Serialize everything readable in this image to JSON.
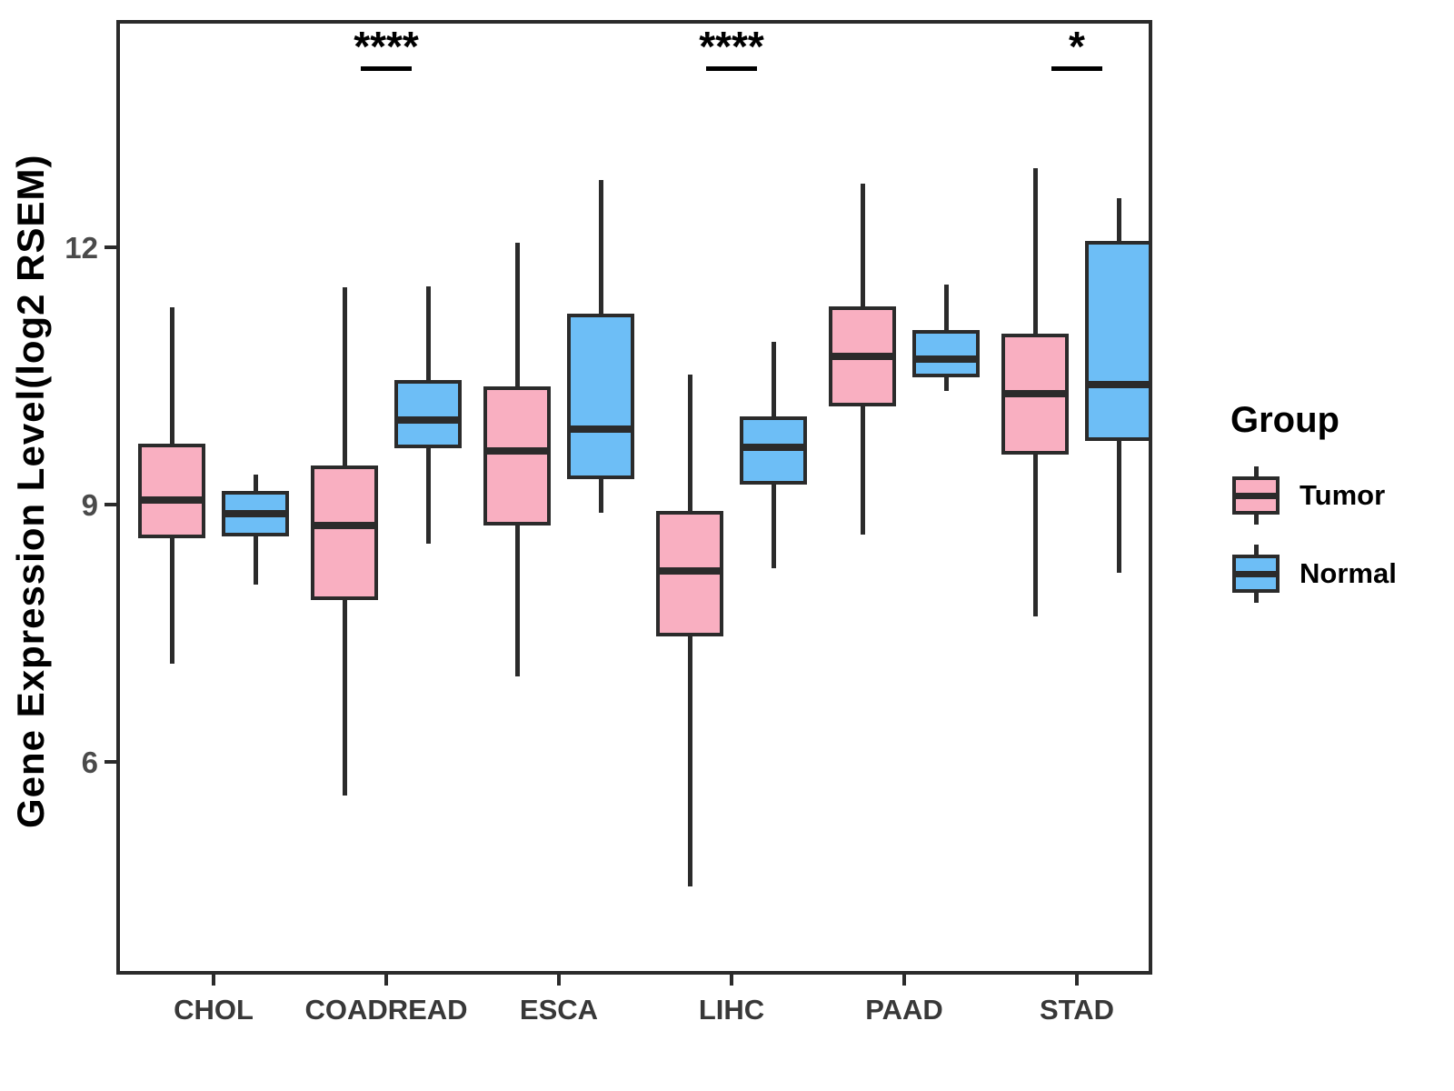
{
  "y_axis": {
    "label": "Gene Expression Level(log2 RSEM)",
    "tick_labels": [
      "12",
      "9",
      "6"
    ]
  },
  "x_axis": {
    "categories": [
      "CHOL",
      "COADREAD",
      "ESCA",
      "LIHC",
      "PAAD",
      "STAD"
    ]
  },
  "legend": {
    "title": "Group",
    "entries": [
      {
        "label": "Tumor",
        "color": "#f9afc1"
      },
      {
        "label": "Normal",
        "color": "#6dbef6"
      }
    ]
  },
  "colors": {
    "tumor_fill": "#f9afc1",
    "normal_fill": "#6dbef6",
    "stroke": "#2b2b2b"
  },
  "chart_data": {
    "type": "boxplot",
    "title": "",
    "xlabel": "",
    "ylabel": "Gene Expression Level(log2 RSEM)",
    "ylim": [
      3.52,
      14.65
    ],
    "yticks": [
      12,
      9,
      6
    ],
    "grid": false,
    "legend_position": "right",
    "categories": [
      "CHOL",
      "COADREAD",
      "ESCA",
      "LIHC",
      "PAAD",
      "STAD"
    ],
    "series": [
      {
        "name": "Tumor",
        "color": "#f9afc1",
        "boxes": [
          {
            "category": "CHOL",
            "whisker_low": 7.15,
            "q1": 8.61,
            "median": 9.05,
            "q3": 9.71,
            "whisker_high": 11.3
          },
          {
            "category": "COADREAD",
            "whisker_low": 5.61,
            "q1": 7.89,
            "median": 8.76,
            "q3": 9.46,
            "whisker_high": 11.53
          },
          {
            "category": "ESCA",
            "whisker_low": 7.0,
            "q1": 8.76,
            "median": 9.63,
            "q3": 10.38,
            "whisker_high": 12.05
          },
          {
            "category": "LIHC",
            "whisker_low": 4.55,
            "q1": 7.46,
            "median": 8.23,
            "q3": 8.93,
            "whisker_high": 10.52
          },
          {
            "category": "PAAD",
            "whisker_low": 8.65,
            "q1": 10.15,
            "median": 10.73,
            "q3": 11.31,
            "whisker_high": 12.74
          },
          {
            "category": "STAD",
            "whisker_low": 7.7,
            "q1": 9.58,
            "median": 10.29,
            "q3": 10.99,
            "whisker_high": 12.92
          }
        ]
      },
      {
        "name": "Normal",
        "color": "#6dbef6",
        "boxes": [
          {
            "category": "CHOL",
            "whisker_low": 8.07,
            "q1": 8.63,
            "median": 8.89,
            "q3": 9.16,
            "whisker_high": 9.35
          },
          {
            "category": "COADREAD",
            "whisker_low": 8.54,
            "q1": 9.66,
            "median": 9.99,
            "q3": 10.45,
            "whisker_high": 11.54
          },
          {
            "category": "ESCA",
            "whisker_low": 8.9,
            "q1": 9.3,
            "median": 9.88,
            "q3": 11.23,
            "whisker_high": 12.78
          },
          {
            "category": "LIHC",
            "whisker_low": 8.26,
            "q1": 9.23,
            "median": 9.67,
            "q3": 10.03,
            "whisker_high": 10.9
          },
          {
            "category": "PAAD",
            "whisker_low": 10.33,
            "q1": 10.48,
            "median": 10.7,
            "q3": 11.04,
            "whisker_high": 11.57
          },
          {
            "category": "STAD",
            "whisker_low": 8.2,
            "q1": 9.74,
            "median": 10.4,
            "q3": 12.07,
            "whisker_high": 12.57
          }
        ]
      }
    ],
    "significance": [
      {
        "category": "COADREAD",
        "label": "****"
      },
      {
        "category": "LIHC",
        "label": "****"
      },
      {
        "category": "STAD",
        "label": "*"
      }
    ]
  }
}
